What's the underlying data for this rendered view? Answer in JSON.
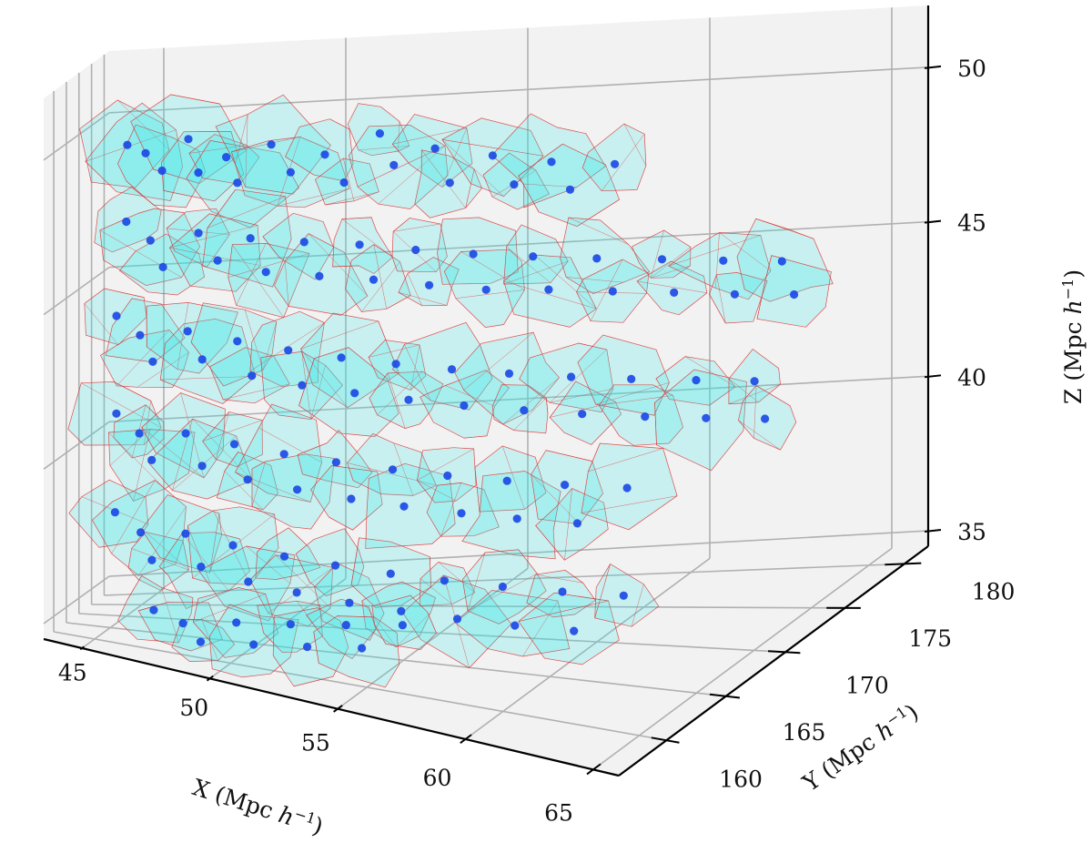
{
  "colors": {
    "background": "#ffffff",
    "pane": "#f2f2f2",
    "grid": "#b0b0b0",
    "cell_fill": "#33e8e8",
    "cell_edge": "#e03030",
    "point": "#1a46e6"
  },
  "chart_data": {
    "type": "scatter",
    "projection": "3d",
    "grid": true,
    "xlim": [
      43.5,
      66
    ],
    "ylim": [
      156,
      182
    ],
    "zlim": [
      34.5,
      52
    ],
    "axes": {
      "x": {
        "label": "X (Mpc h⁻¹)",
        "label_main": "X (Mpc ",
        "label_h": "h",
        "label_sup": "−1",
        "label_close": ")",
        "ticks": [
          45,
          50,
          55,
          60,
          65
        ],
        "tick_labels": [
          "45",
          "50",
          "55",
          "60",
          "65"
        ]
      },
      "y": {
        "label": "Y (Mpc h⁻¹)",
        "label_main": "Y (Mpc ",
        "label_h": "h",
        "label_sup": "−1",
        "label_close": ")",
        "ticks": [
          160,
          165,
          170,
          175,
          180
        ],
        "tick_labels": [
          "160",
          "165",
          "170",
          "175",
          "180"
        ]
      },
      "z": {
        "label": "Z (Mpc h⁻¹)",
        "label_main": "Z (Mpc ",
        "label_h": "h",
        "label_sup": "−1",
        "label_close": ")",
        "ticks": [
          35,
          40,
          45,
          50
        ],
        "tick_labels": [
          "35",
          "40",
          "45",
          "50"
        ]
      }
    },
    "series": [
      {
        "points": [
          [
            45.1,
            169.4,
            49.8
          ],
          [
            45.6,
            170.2,
            49.5
          ],
          [
            46.3,
            168.7,
            49.1
          ],
          [
            46.8,
            171.5,
            49.9
          ],
          [
            47.2,
            170.8,
            48.9
          ],
          [
            47.9,
            172.1,
            49.3
          ],
          [
            48.4,
            171.0,
            48.6
          ],
          [
            49.1,
            173.4,
            49.6
          ],
          [
            49.8,
            172.7,
            48.8
          ],
          [
            50.6,
            174.2,
            49.2
          ],
          [
            51.3,
            173.5,
            48.4
          ],
          [
            52.0,
            175.6,
            49.7
          ],
          [
            52.7,
            174.1,
            48.9
          ],
          [
            53.5,
            176.3,
            49.1
          ],
          [
            54.2,
            175.0,
            48.2
          ],
          [
            55.0,
            177.2,
            48.7
          ],
          [
            55.8,
            176.4,
            47.9
          ],
          [
            56.5,
            178.1,
            48.3
          ],
          [
            57.3,
            177.0,
            47.6
          ],
          [
            58.1,
            179.0,
            48.0
          ],
          [
            45.3,
            167.2,
            47.5
          ],
          [
            45.9,
            168.9,
            46.8
          ],
          [
            46.6,
            166.5,
            46.2
          ],
          [
            47.4,
            169.3,
            47.1
          ],
          [
            48.2,
            168.0,
            46.4
          ],
          [
            48.9,
            170.4,
            46.9
          ],
          [
            49.6,
            169.1,
            46.0
          ],
          [
            50.4,
            171.6,
            46.7
          ],
          [
            51.1,
            170.3,
            45.8
          ],
          [
            51.9,
            172.8,
            46.5
          ],
          [
            52.6,
            171.4,
            45.6
          ],
          [
            53.4,
            173.9,
            46.2
          ],
          [
            54.1,
            172.5,
            45.3
          ],
          [
            54.9,
            175.0,
            45.9
          ],
          [
            55.6,
            173.6,
            45.0
          ],
          [
            56.4,
            176.2,
            45.6
          ],
          [
            57.2,
            174.8,
            44.8
          ],
          [
            58.0,
            177.3,
            45.3
          ],
          [
            58.8,
            176.0,
            44.5
          ],
          [
            59.6,
            178.4,
            45.0
          ],
          [
            60.3,
            177.1,
            44.2
          ],
          [
            61.1,
            179.3,
            44.7
          ],
          [
            61.8,
            178.0,
            43.9
          ],
          [
            62.5,
            180.2,
            44.4
          ],
          [
            63.2,
            179.0,
            43.6
          ],
          [
            45.2,
            165.1,
            44.6
          ],
          [
            45.8,
            166.8,
            43.9
          ],
          [
            46.5,
            164.6,
            43.3
          ],
          [
            47.3,
            167.4,
            44.1
          ],
          [
            48.0,
            165.9,
            43.4
          ],
          [
            48.8,
            168.3,
            43.8
          ],
          [
            49.5,
            166.9,
            42.9
          ],
          [
            50.3,
            169.2,
            43.5
          ],
          [
            51.0,
            167.8,
            42.6
          ],
          [
            51.8,
            170.3,
            43.2
          ],
          [
            52.5,
            168.9,
            42.3
          ],
          [
            53.3,
            171.4,
            42.9
          ],
          [
            54.0,
            170.0,
            42.0
          ],
          [
            54.8,
            172.5,
            42.6
          ],
          [
            55.5,
            171.1,
            41.7
          ],
          [
            56.3,
            173.6,
            42.3
          ],
          [
            57.1,
            172.2,
            41.4
          ],
          [
            57.9,
            174.7,
            42.0
          ],
          [
            58.6,
            173.3,
            41.1
          ],
          [
            59.4,
            175.8,
            41.7
          ],
          [
            60.2,
            174.4,
            40.8
          ],
          [
            61.0,
            176.9,
            41.4
          ],
          [
            61.7,
            175.5,
            40.5
          ],
          [
            62.4,
            177.9,
            41.1
          ],
          [
            63.1,
            176.6,
            40.2
          ],
          [
            45.4,
            163.3,
            41.6
          ],
          [
            46.0,
            164.9,
            40.9
          ],
          [
            46.7,
            162.8,
            40.3
          ],
          [
            47.5,
            165.5,
            41.0
          ],
          [
            48.3,
            163.9,
            40.2
          ],
          [
            49.0,
            166.4,
            40.7
          ],
          [
            49.7,
            164.9,
            39.8
          ],
          [
            50.5,
            167.3,
            40.4
          ],
          [
            51.2,
            165.9,
            39.5
          ],
          [
            52.0,
            168.4,
            40.1
          ],
          [
            52.8,
            166.9,
            39.2
          ],
          [
            53.6,
            169.5,
            39.8
          ],
          [
            54.3,
            168.0,
            38.9
          ],
          [
            55.1,
            170.6,
            39.5
          ],
          [
            55.9,
            169.1,
            38.6
          ],
          [
            56.7,
            171.7,
            39.2
          ],
          [
            57.4,
            170.2,
            38.3
          ],
          [
            58.2,
            172.8,
            38.9
          ],
          [
            59.0,
            171.3,
            38.0
          ],
          [
            59.8,
            173.9,
            38.6
          ],
          [
            45.6,
            161.2,
            38.6
          ],
          [
            46.3,
            162.9,
            37.9
          ],
          [
            47.0,
            160.7,
            37.3
          ],
          [
            47.8,
            163.4,
            38.0
          ],
          [
            48.6,
            161.8,
            37.2
          ],
          [
            49.3,
            164.3,
            37.7
          ],
          [
            50.1,
            162.8,
            36.8
          ],
          [
            50.9,
            165.2,
            37.4
          ],
          [
            51.6,
            163.8,
            36.5
          ],
          [
            52.4,
            166.3,
            37.1
          ],
          [
            53.2,
            164.8,
            36.2
          ],
          [
            54.0,
            167.4,
            36.8
          ],
          [
            54.7,
            165.9,
            35.9
          ],
          [
            55.5,
            168.5,
            36.5
          ],
          [
            56.3,
            167.0,
            35.6
          ],
          [
            57.1,
            169.6,
            36.2
          ],
          [
            57.9,
            168.1,
            35.3
          ],
          [
            58.7,
            170.7,
            35.9
          ],
          [
            59.5,
            169.2,
            35.0
          ],
          [
            60.3,
            171.8,
            35.6
          ],
          [
            47.2,
            159.8,
            35.8
          ],
          [
            48.1,
            160.9,
            35.4
          ],
          [
            49.0,
            159.4,
            35.1
          ],
          [
            49.9,
            161.6,
            35.6
          ],
          [
            50.8,
            160.2,
            35.2
          ],
          [
            51.7,
            162.3,
            35.7
          ],
          [
            52.6,
            160.9,
            35.3
          ],
          [
            53.5,
            163.0,
            35.8
          ],
          [
            54.4,
            161.6,
            35.4
          ],
          [
            55.3,
            163.7,
            35.9
          ]
        ]
      }
    ]
  }
}
